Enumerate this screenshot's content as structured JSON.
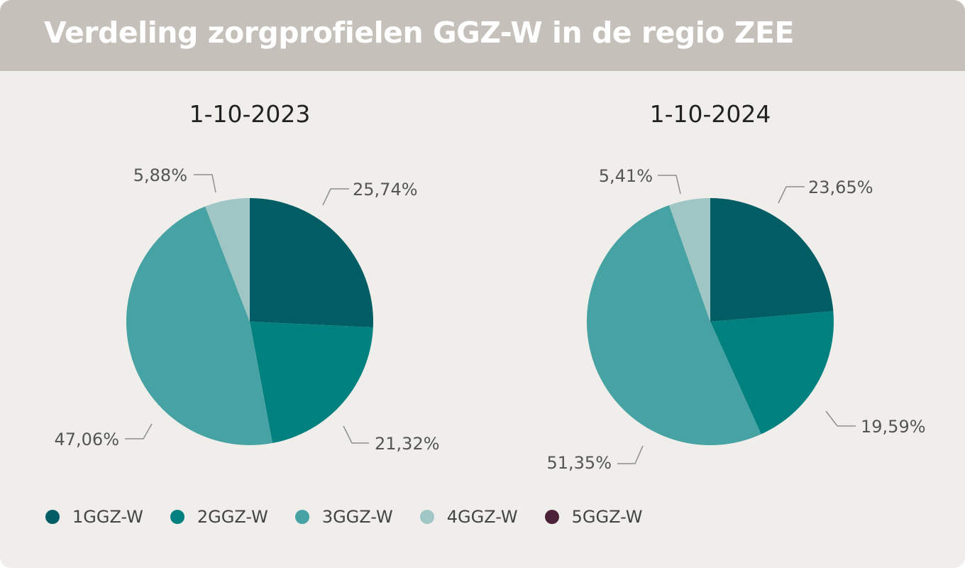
{
  "title": "Verdeling zorgprofielen GGZ-W in de regio ZEE",
  "legend": [
    {
      "label": "1GGZ-W",
      "color": "#005d63"
    },
    {
      "label": "2GGZ-W",
      "color": "#00807e"
    },
    {
      "label": "3GGZ-W",
      "color": "#47a3a3"
    },
    {
      "label": "4GGZ-W",
      "color": "#a0c5c5"
    },
    {
      "label": "5GGZ-W",
      "color": "#4a2137"
    }
  ],
  "chart_data": [
    {
      "type": "pie",
      "title": "1-10-2023",
      "categories": [
        "1GGZ-W",
        "2GGZ-W",
        "3GGZ-W",
        "4GGZ-W",
        "5GGZ-W"
      ],
      "values": [
        25.74,
        21.32,
        47.06,
        5.88,
        0
      ],
      "data_labels": [
        "25,74%",
        "21,32%",
        "47,06%",
        "5,88%",
        ""
      ]
    },
    {
      "type": "pie",
      "title": "1-10-2024",
      "categories": [
        "1GGZ-W",
        "2GGZ-W",
        "3GGZ-W",
        "4GGZ-W",
        "5GGZ-W"
      ],
      "values": [
        23.65,
        19.59,
        51.35,
        5.41,
        0
      ],
      "data_labels": [
        "23,65%",
        "19,59%",
        "51,35%",
        "5,41%",
        ""
      ]
    }
  ]
}
